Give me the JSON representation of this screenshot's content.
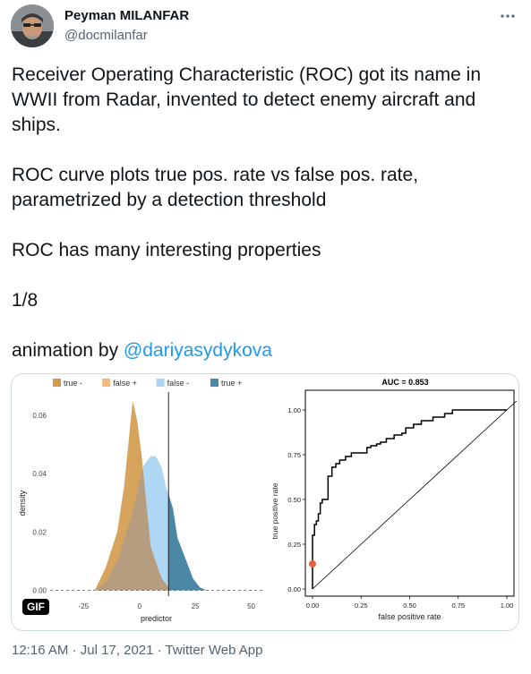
{
  "author": {
    "name": "Peyman MILANFAR",
    "handle": "@docmilanfar"
  },
  "menu_icon": "more-dots-icon",
  "text": {
    "p1": "Receiver Operating Characteristic (ROC) got its name in WWII from Radar, invented to detect enemy aircraft and ships.",
    "p2": "ROC curve plots true pos. rate vs false pos. rate, parametrized by a detection threshold",
    "p3": "ROC has many interesting properties",
    "p4": "1/8",
    "p5_prefix": "animation by ",
    "p5_mention": "@dariyasydykova"
  },
  "media": {
    "badge": "GIF",
    "colors": {
      "true_neg": "#d29a4a",
      "false_pos": "#f0b87a",
      "false_neg": "#a9d5f1",
      "true_pos": "#4a86a6",
      "marker": "#e8613d"
    }
  },
  "chart_data": [
    {
      "type": "area",
      "legend": [
        "true -",
        "false +",
        "false -",
        "true +"
      ],
      "legend_placement": "top",
      "xlabel": "predictor",
      "ylabel": "density",
      "x_ticks": [
        "-25",
        "0",
        "25",
        "50"
      ],
      "y_ticks": [
        "0.00",
        "0.02",
        "0.04",
        "0.06"
      ],
      "xlim": [
        -40,
        55
      ],
      "ylim": [
        -0.002,
        0.068
      ],
      "threshold": 13,
      "series": [
        {
          "name": "true -",
          "x": [
            -20,
            -15,
            -10,
            -7,
            -5,
            -4,
            -3,
            -1,
            1,
            3,
            5,
            8,
            10,
            12,
            13
          ],
          "y": [
            0,
            0.008,
            0.02,
            0.035,
            0.05,
            0.058,
            0.065,
            0.058,
            0.046,
            0.03,
            0.015,
            0.008,
            0.004,
            0.002,
            0.001
          ]
        },
        {
          "name": "false -",
          "x": [
            -20,
            -15,
            -10,
            -5,
            -2,
            0,
            2,
            5,
            7,
            8,
            10,
            12,
            13
          ],
          "y": [
            0,
            0.003,
            0.01,
            0.022,
            0.03,
            0.038,
            0.043,
            0.046,
            0.046,
            0.045,
            0.042,
            0.035,
            0.033
          ]
        },
        {
          "name": "true +",
          "x": [
            13,
            15,
            17,
            20,
            22,
            24,
            27,
            30
          ],
          "y": [
            0.033,
            0.028,
            0.018,
            0.012,
            0.008,
            0.004,
            0.001,
            0
          ]
        }
      ]
    },
    {
      "type": "line",
      "title": "AUC = 0.853",
      "xlabel": "false positive rate",
      "ylabel": "true positive rate",
      "x_ticks": [
        "0.00",
        "0.25",
        "0.50",
        "0.75",
        "1.00"
      ],
      "y_ticks": [
        "0.00",
        "0.25",
        "0.50",
        "0.75",
        "1.00"
      ],
      "xlim": [
        0,
        1
      ],
      "ylim": [
        0,
        1
      ],
      "marker": [
        0,
        0.14
      ],
      "series": [
        {
          "name": "",
          "x": [
            0,
            0,
            0.01,
            0.01,
            0.02,
            0.02,
            0.03,
            0.03,
            0.04,
            0.04,
            0.05,
            0.05,
            0.06,
            0.06,
            0.08,
            0.08,
            0.1,
            0.1,
            0.12,
            0.12,
            0.14,
            0.14,
            0.17,
            0.17,
            0.2,
            0.2,
            0.24,
            0.24,
            0.28,
            0.28,
            0.3,
            0.3,
            0.33,
            0.33,
            0.35,
            0.35,
            0.38,
            0.38,
            0.42,
            0.42,
            0.46,
            0.46,
            0.48,
            0.48,
            0.52,
            0.52,
            0.56,
            0.56,
            0.58,
            0.58,
            0.62,
            0.62,
            0.65,
            0.65,
            0.68,
            0.68,
            0.72,
            0.72,
            1.0
          ],
          "y": [
            0,
            0.3,
            0.3,
            0.36,
            0.36,
            0.38,
            0.38,
            0.42,
            0.42,
            0.48,
            0.48,
            0.5,
            0.5,
            0.5,
            0.5,
            0.63,
            0.63,
            0.68,
            0.68,
            0.7,
            0.7,
            0.72,
            0.72,
            0.74,
            0.74,
            0.76,
            0.76,
            0.76,
            0.76,
            0.79,
            0.79,
            0.8,
            0.8,
            0.81,
            0.81,
            0.82,
            0.82,
            0.84,
            0.84,
            0.86,
            0.86,
            0.87,
            0.87,
            0.9,
            0.9,
            0.92,
            0.92,
            0.94,
            0.94,
            0.94,
            0.94,
            0.96,
            0.96,
            0.96,
            0.96,
            0.98,
            0.98,
            1.0,
            1.0
          ]
        },
        {
          "name": "",
          "x": [
            0,
            1.05
          ],
          "y": [
            0,
            1.05
          ]
        }
      ]
    }
  ],
  "footer": {
    "time": "12:16 AM",
    "date": "Jul 17, 2021",
    "app": "Twitter Web App",
    "sep": " · "
  }
}
